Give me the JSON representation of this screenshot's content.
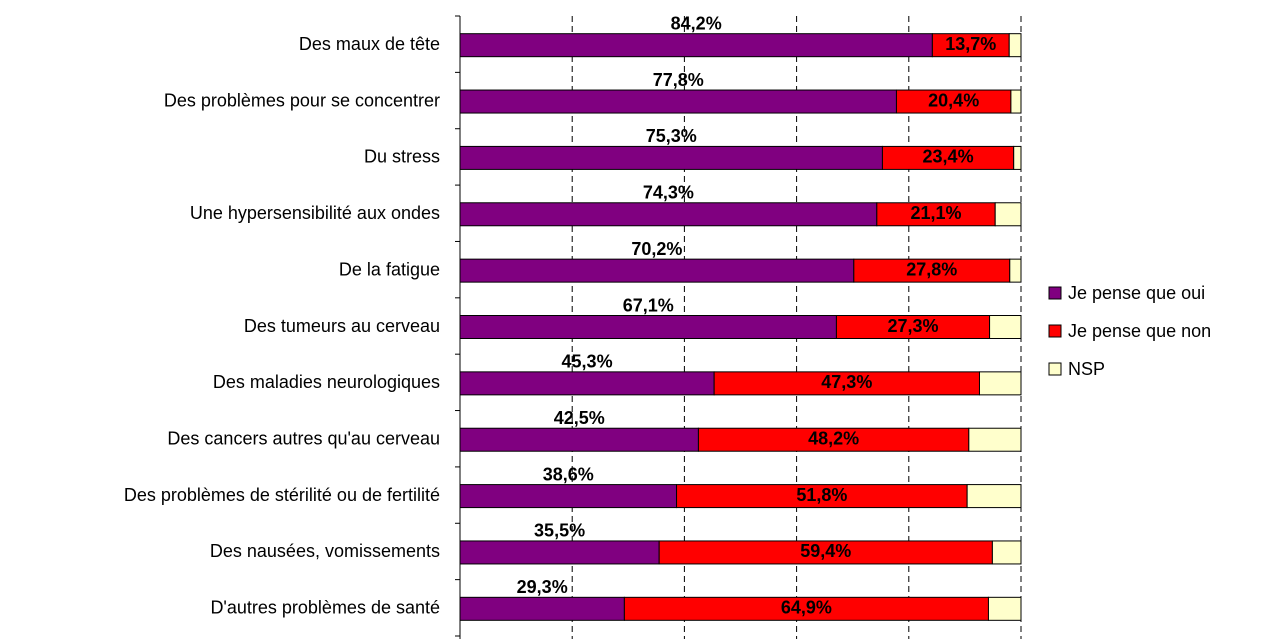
{
  "chart_data": {
    "type": "stacked-barh",
    "categories": [
      "Des maux de tête",
      "Des problèmes pour se concentrer",
      "Du stress",
      "Une hypersensibilité aux ondes",
      "De la fatigue",
      "Des tumeurs au cerveau",
      "Des maladies neurologiques",
      "Des cancers autres qu'au cerveau",
      "Des problèmes de stérilité ou de fertilité",
      "Des nausées, vomissements",
      "D'autres problèmes de santé"
    ],
    "series": [
      {
        "name": "Je pense que oui",
        "color": "#800080",
        "values": [
          84.2,
          77.8,
          75.3,
          74.3,
          70.2,
          67.1,
          45.3,
          42.5,
          38.6,
          35.5,
          29.3
        ],
        "value_labels": [
          "84,2%",
          "77,8%",
          "75,3%",
          "74,3%",
          "70,2%",
          "67,1%",
          "45,3%",
          "42,5%",
          "38,6%",
          "35,5%",
          "29,3%"
        ]
      },
      {
        "name": "Je pense que non",
        "color": "#ff0000",
        "values": [
          13.7,
          20.4,
          23.4,
          21.1,
          27.8,
          27.3,
          47.3,
          48.2,
          51.8,
          59.4,
          64.9
        ],
        "value_labels": [
          "13,7%",
          "20,4%",
          "23,4%",
          "21,1%",
          "27,8%",
          "27,3%",
          "47,3%",
          "48,2%",
          "51,8%",
          "59,4%",
          "64,9%"
        ]
      },
      {
        "name": "NSP",
        "color": "#ffffcc",
        "values": [
          2.1,
          1.8,
          1.3,
          4.6,
          2.0,
          5.6,
          7.4,
          9.3,
          9.6,
          5.1,
          5.8
        ]
      }
    ],
    "xlim": [
      0,
      100
    ],
    "xticks": [
      0,
      20,
      40,
      60,
      80,
      100
    ],
    "grid": true,
    "legend": "right"
  }
}
